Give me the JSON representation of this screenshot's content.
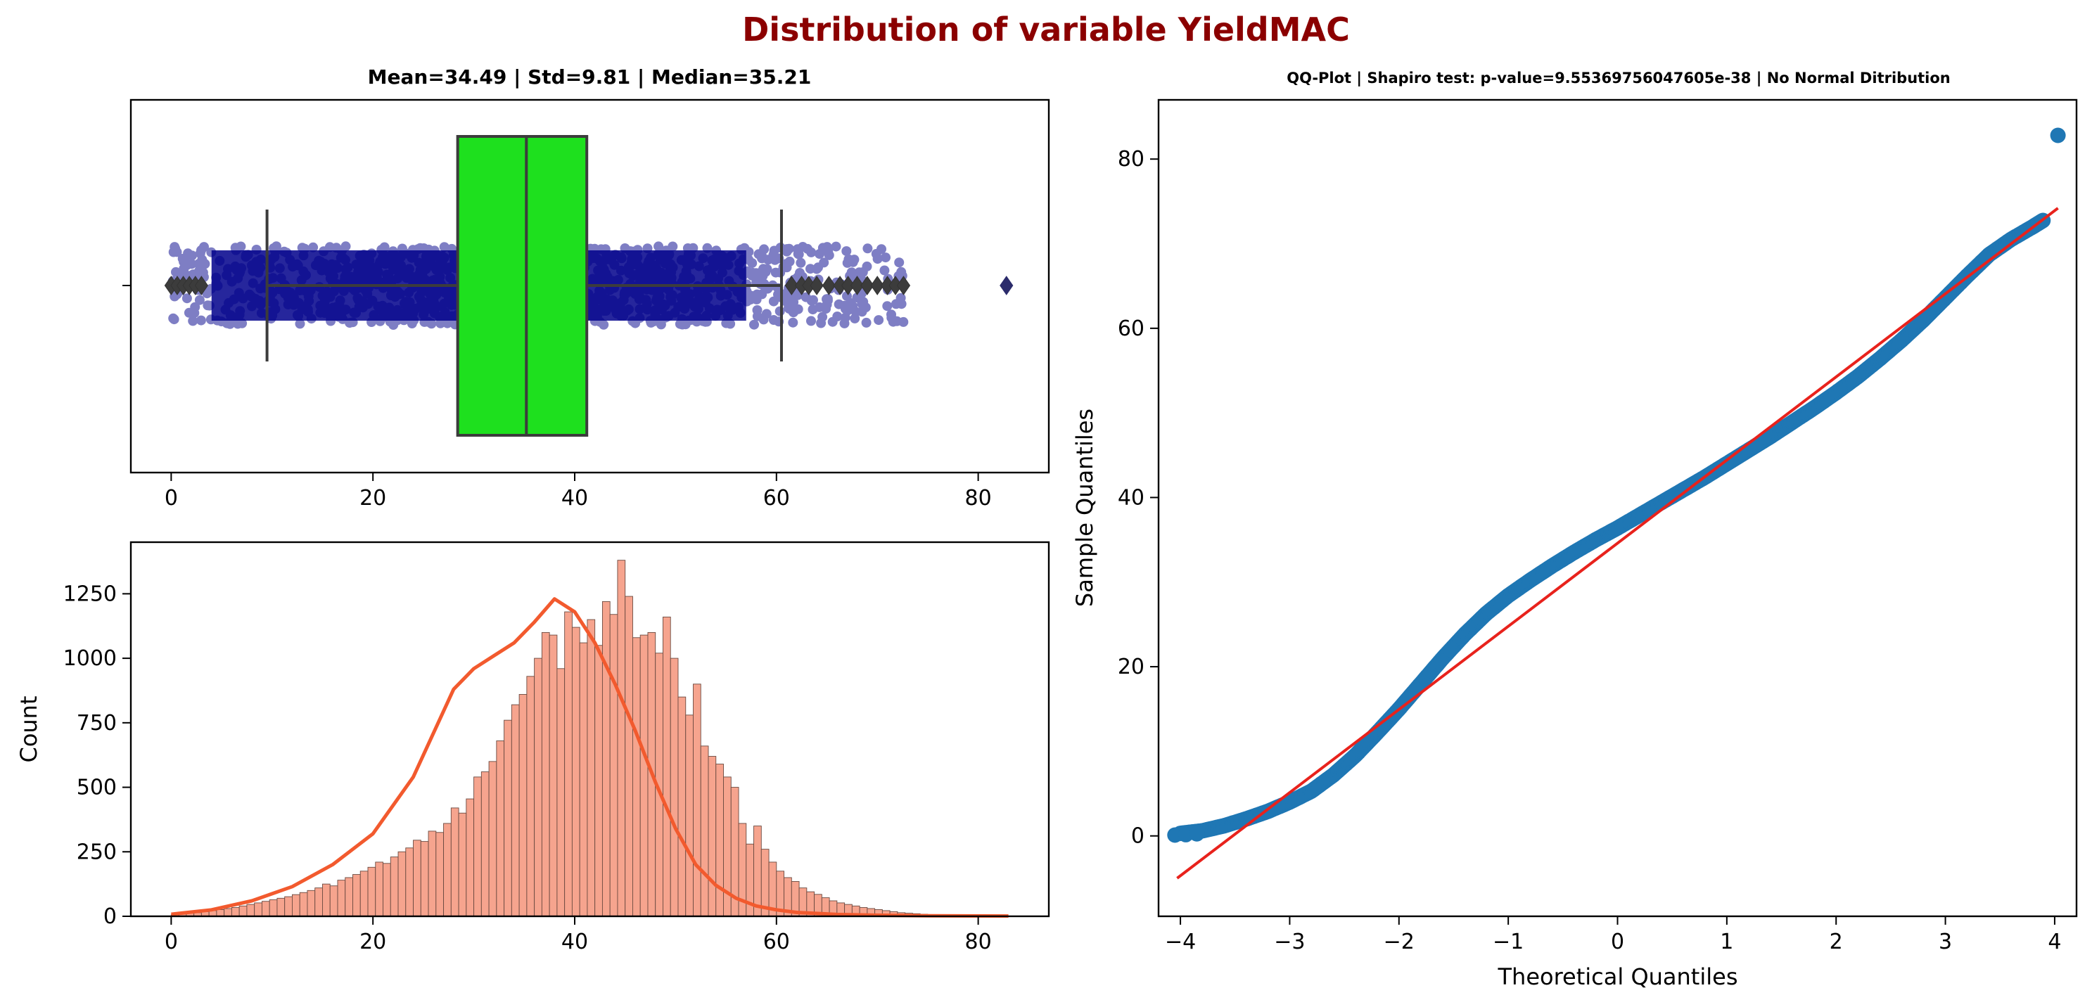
{
  "suptitle": "Distribution of variable YieldMAC",
  "colors": {
    "suptitle": "#8b0000",
    "box_fill": "#1ee01e",
    "strip_points": "#00008b",
    "hist_fill": "#f6a48e",
    "kde_line": "#f25a2e",
    "qq_points": "#1f77b4",
    "qq_line": "#e8221c",
    "outlier_marker": "#3c3c3c"
  },
  "chart_data": [
    {
      "type": "box",
      "title": "Mean=34.49 | Std=9.81 | Median=35.21",
      "xlim": [
        -4,
        87
      ],
      "xticks": [
        0,
        20,
        40,
        60,
        80
      ],
      "xtick_labels": [
        "0",
        "20",
        "40",
        "60",
        "80"
      ],
      "whisker_low": 9.5,
      "q1": 28.4,
      "median": 35.21,
      "q3": 41.2,
      "whisker_high": 60.5,
      "outliers": [
        0,
        0.6,
        1.2,
        1.8,
        2.4,
        3.0,
        61.5,
        62.5,
        63.2,
        64.0,
        65.2,
        66.3,
        67.1,
        68.0,
        69.0,
        70.0,
        71.0,
        71.8,
        72.6,
        82.8
      ],
      "strip_range": [
        0,
        73
      ]
    },
    {
      "type": "bar",
      "title": "",
      "xlabel": "",
      "ylabel": "Count",
      "xlim": [
        -4,
        87
      ],
      "ylim": [
        0,
        1450
      ],
      "xticks": [
        0,
        20,
        40,
        60,
        80
      ],
      "xtick_labels": [
        "0",
        "20",
        "40",
        "60",
        "80"
      ],
      "yticks": [
        0,
        250,
        500,
        750,
        1000,
        1250
      ],
      "ytick_labels": [
        "0",
        "250",
        "500",
        "750",
        "1000",
        "1250"
      ],
      "bin_start": 0,
      "bin_width": 0.75,
      "values": [
        6,
        10,
        12,
        14,
        18,
        22,
        26,
        30,
        34,
        40,
        46,
        52,
        58,
        64,
        70,
        76,
        84,
        92,
        100,
        110,
        125,
        118,
        140,
        150,
        162,
        175,
        190,
        210,
        205,
        230,
        250,
        265,
        295,
        290,
        330,
        325,
        360,
        420,
        400,
        455,
        540,
        560,
        600,
        680,
        760,
        820,
        860,
        930,
        1000,
        1100,
        1090,
        960,
        1180,
        1120,
        1060,
        1150,
        1050,
        1220,
        1170,
        1380,
        1240,
        1080,
        1090,
        1100,
        1020,
        1160,
        1000,
        850,
        780,
        900,
        660,
        620,
        590,
        540,
        500,
        360,
        280,
        350,
        260,
        210,
        175,
        150,
        135,
        110,
        95,
        85,
        72,
        60,
        52,
        46,
        40,
        34,
        30,
        26,
        22,
        18,
        14,
        12,
        10,
        8,
        6,
        5,
        4,
        3,
        3,
        2,
        2,
        1,
        1,
        1,
        1,
        1
      ],
      "kde_x": [
        0,
        4,
        8,
        12,
        16,
        20,
        24,
        28,
        30,
        32,
        34,
        36,
        38,
        40,
        42,
        44,
        46,
        48,
        50,
        52,
        54,
        56,
        58,
        60,
        62,
        66,
        70,
        75,
        83
      ],
      "kde_y": [
        8,
        25,
        60,
        115,
        200,
        320,
        540,
        880,
        960,
        1010,
        1060,
        1140,
        1230,
        1180,
        1060,
        900,
        720,
        520,
        340,
        200,
        120,
        70,
        40,
        25,
        15,
        7,
        4,
        2,
        1
      ]
    },
    {
      "type": "scatter",
      "title": "QQ-Plot | Shapiro test: p-value=9.55369756047605e-38 | No Normal Ditribution",
      "xlabel": "Theoretical Quantiles",
      "ylabel": "Sample Quantiles",
      "xlim": [
        -4.2,
        4.2
      ],
      "ylim": [
        -9.5,
        87
      ],
      "xticks": [
        -4,
        -3,
        -2,
        -1,
        0,
        1,
        2,
        3,
        4
      ],
      "xtick_labels": [
        "−4",
        "−3",
        "−2",
        "−1",
        "0",
        "1",
        "2",
        "3",
        "4"
      ],
      "yticks": [
        0,
        20,
        40,
        60,
        80
      ],
      "ytick_labels": [
        "0",
        "20",
        "40",
        "60",
        "80"
      ],
      "curve_x": [
        -4.0,
        -3.8,
        -3.6,
        -3.4,
        -3.2,
        -3.0,
        -2.8,
        -2.6,
        -2.4,
        -2.2,
        -2.0,
        -1.8,
        -1.6,
        -1.4,
        -1.2,
        -1.0,
        -0.8,
        -0.6,
        -0.4,
        -0.2,
        0,
        0.2,
        0.4,
        0.6,
        0.8,
        1.0,
        1.2,
        1.4,
        1.6,
        1.8,
        2.0,
        2.2,
        2.4,
        2.6,
        2.8,
        3.0,
        3.2,
        3.4,
        3.6,
        3.8,
        3.9
      ],
      "curve_y": [
        0.3,
        0.6,
        1.2,
        2.0,
        2.9,
        4.0,
        5.3,
        7.2,
        9.5,
        12.2,
        15.0,
        18.0,
        21.0,
        23.8,
        26.3,
        28.4,
        30.2,
        31.9,
        33.5,
        35.0,
        36.4,
        37.9,
        39.4,
        40.9,
        42.4,
        44.0,
        45.6,
        47.2,
        48.9,
        50.6,
        52.4,
        54.3,
        56.4,
        58.6,
        61.0,
        63.6,
        66.2,
        68.7,
        70.5,
        72.0,
        72.8
      ],
      "extreme_points": [
        [
          -4.05,
          0.1
        ],
        [
          -3.95,
          0.15
        ],
        [
          -3.85,
          0.25
        ],
        [
          4.03,
          82.8
        ]
      ],
      "line": [
        [
          -4.03,
          -5.0
        ],
        [
          4.03,
          74.2
        ]
      ]
    }
  ]
}
